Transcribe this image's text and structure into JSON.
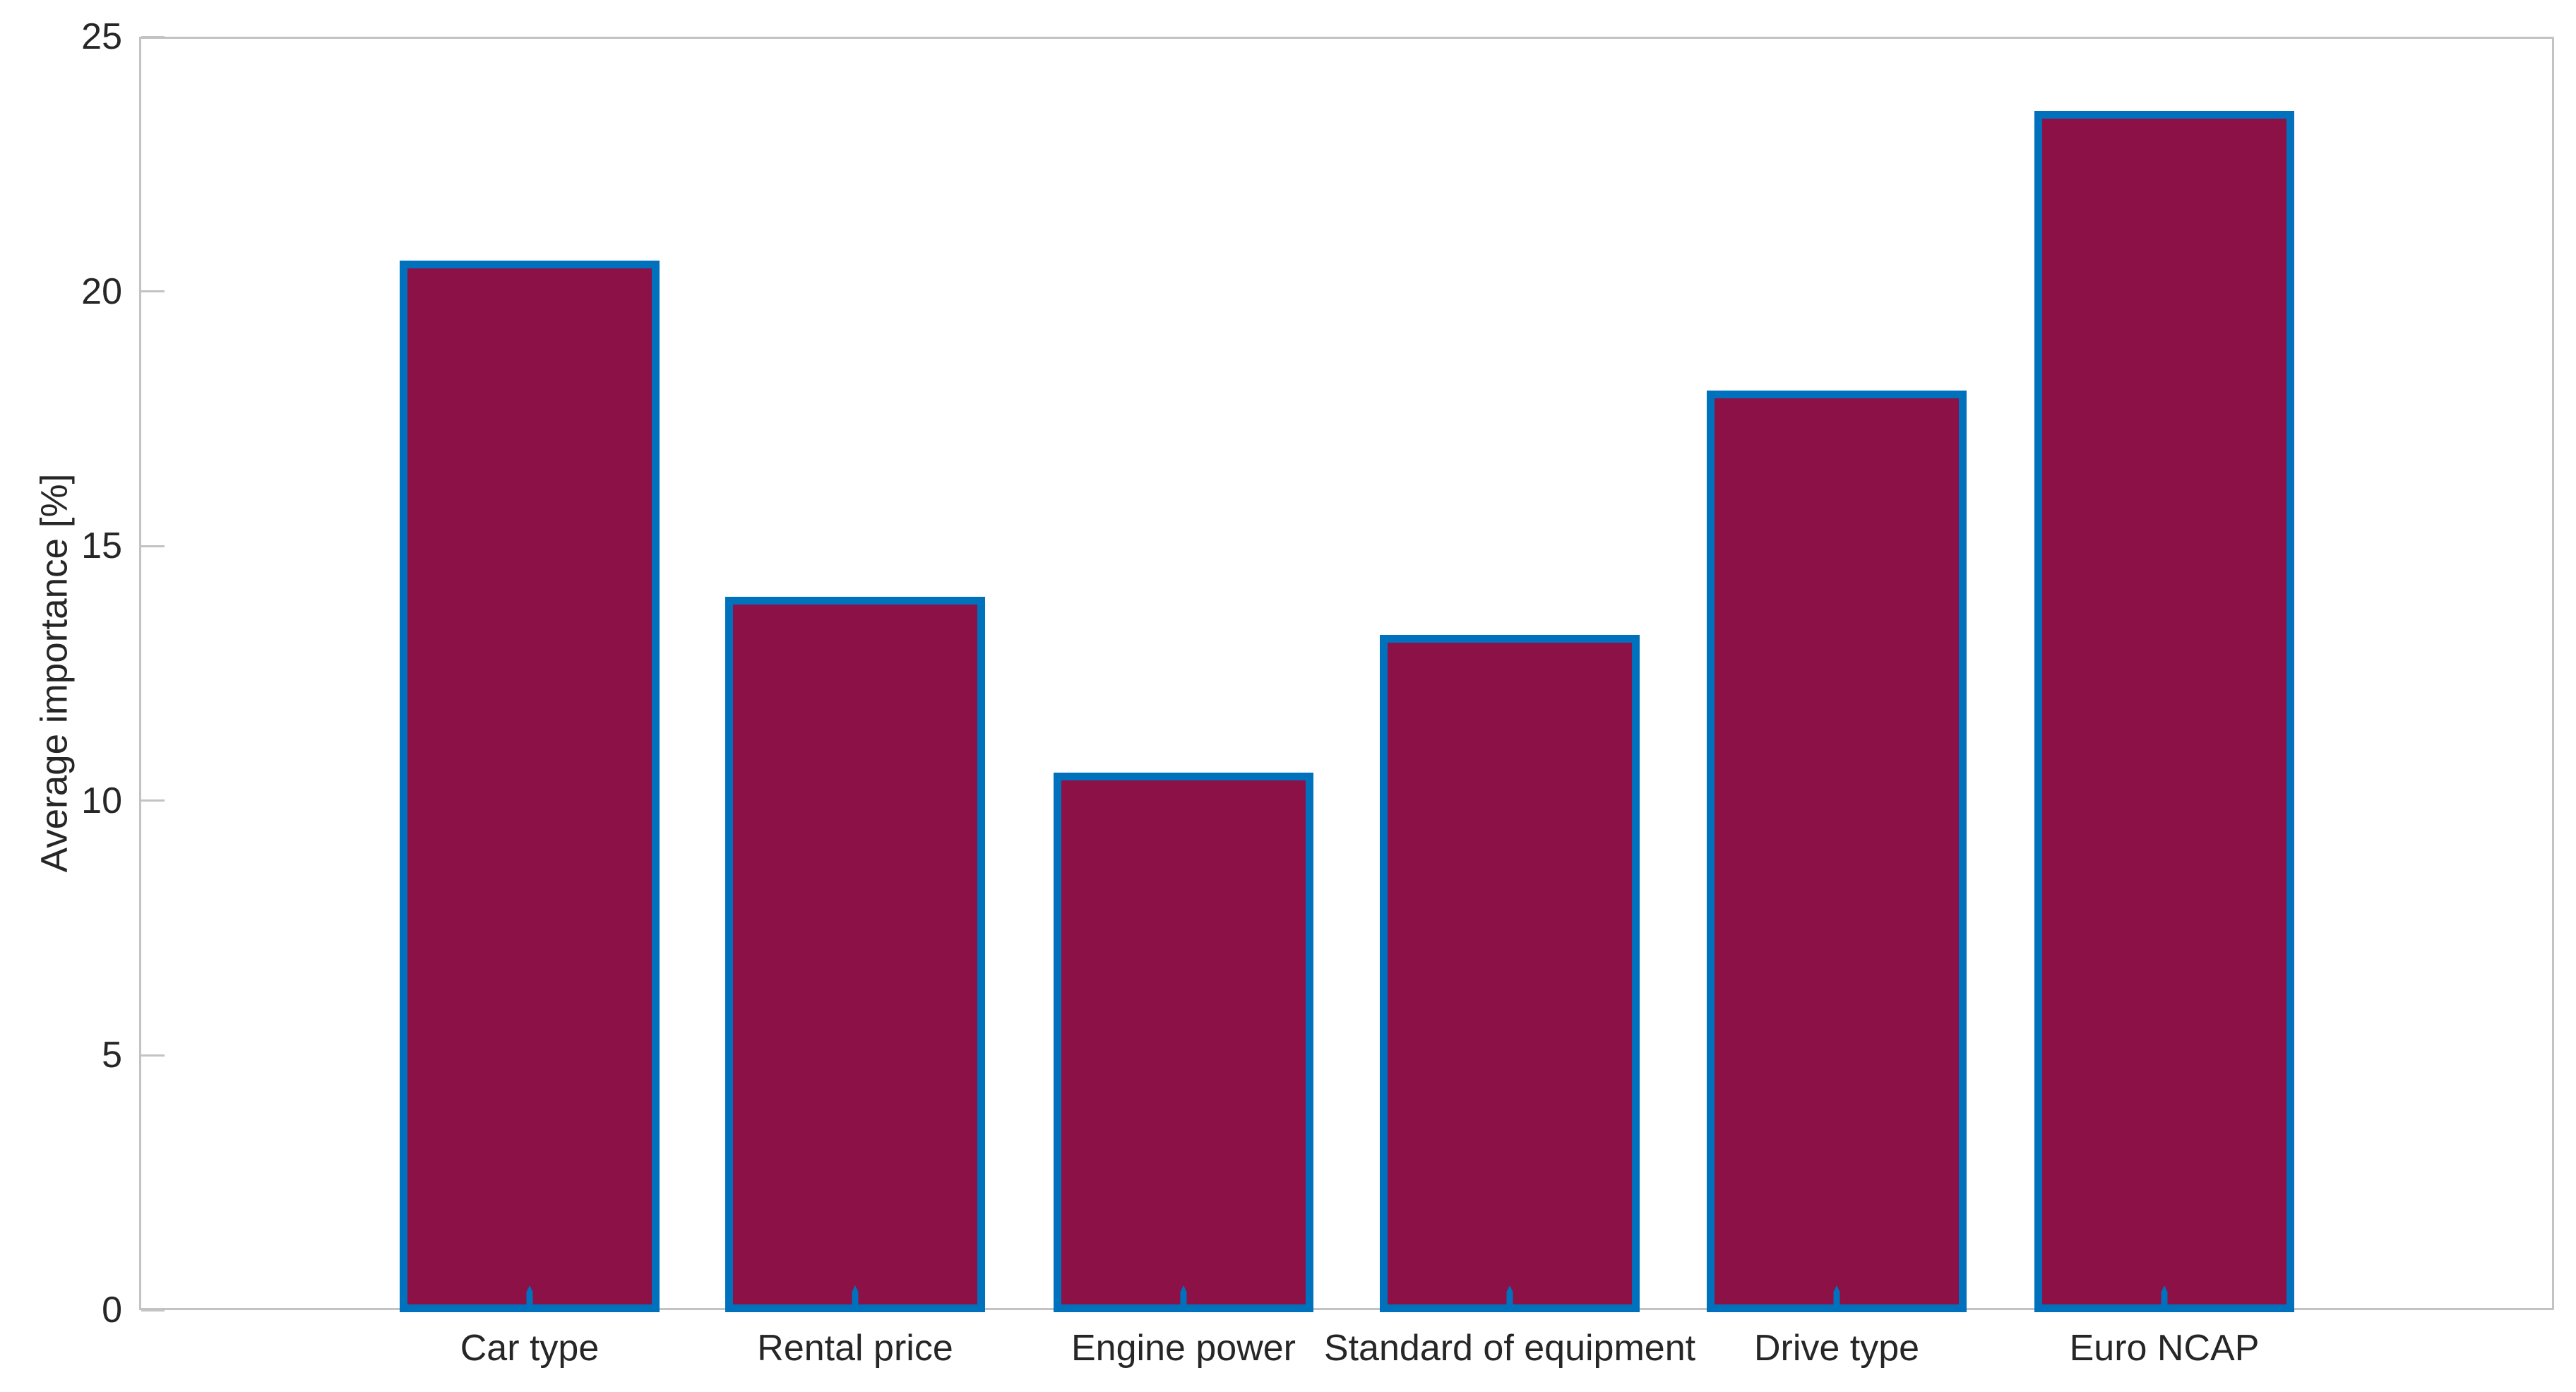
{
  "chart_data": {
    "type": "bar",
    "categories": [
      "Car type",
      "Rental price",
      "Engine power",
      "Standard of equipment",
      "Drive type",
      "Euro NCAP"
    ],
    "values": [
      20.6,
      14.0,
      10.55,
      13.25,
      18.05,
      23.55
    ],
    "title": "",
    "xlabel": "",
    "ylabel": "Average importance [%]",
    "ylim": [
      0,
      25
    ],
    "yticks": [
      0,
      5,
      10,
      15,
      20,
      25
    ],
    "ytick_labels": [
      "0",
      "5",
      "10",
      "15",
      "20",
      "25"
    ],
    "grid": false,
    "legend": null,
    "box": true,
    "bar_fill_color": "#8B1147",
    "bar_edge_color": "#0072BD",
    "axis_color": "#C3C3C3",
    "text_color": "#262626",
    "background_color": "#FFFFFF"
  }
}
